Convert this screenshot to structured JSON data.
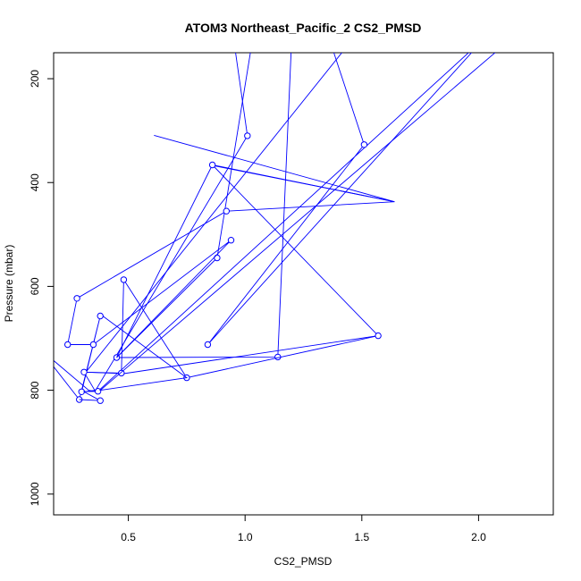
{
  "chart_data": {
    "type": "line",
    "title": "ATOM3 Northeast_Pacific_2 CS2_PMSD",
    "xlabel": "CS2_PMSD",
    "ylabel": "Pressure (mbar)",
    "xlim": [
      0.25,
      2.25
    ],
    "ylim": [
      1030,
      150
    ],
    "y_reversed": true,
    "x_ticks": [
      0.5,
      1.0,
      1.5,
      2.0
    ],
    "x_tick_labels": [
      "0.5",
      "1.0",
      "1.5",
      "2.0"
    ],
    "y_ticks": [
      200,
      400,
      600,
      800,
      1000
    ],
    "y_tick_labels": [
      "200",
      "400",
      "600",
      "800",
      "1000"
    ],
    "grid": false,
    "line_color": "#0000ff",
    "series": [
      {
        "x": [
          1.38,
          1.51,
          0.84,
          2.03,
          0.37,
          0.3,
          0.38,
          0.29,
          0.12,
          0.33,
          0.36,
          0.31,
          0.48,
          1.57,
          0.86,
          1.64,
          0.61
        ],
        "y": [
          150,
          327,
          712,
          120,
          802,
          803,
          657,
          818,
          720,
          800,
          803,
          765,
          768,
          695,
          366,
          437,
          309
        ],
        "markers": [
          false,
          true,
          true,
          false,
          true,
          true,
          true,
          true,
          false,
          false,
          false,
          false,
          false,
          false,
          false,
          false,
          false
        ]
      },
      {
        "x": [
          0.95,
          1.01,
          0.36,
          0.31,
          0.38,
          0.29
        ],
        "y": [
          120,
          310,
          800,
          803,
          820,
          818
        ],
        "markers": [
          false,
          true,
          false,
          false,
          true,
          false
        ]
      },
      {
        "x": [
          1.03,
          0.88,
          0.45,
          1.14,
          1.2
        ],
        "y": [
          130,
          545,
          737,
          736,
          120
        ],
        "markers": [
          false,
          true,
          true,
          true,
          false
        ]
      },
      {
        "x": [
          0.85,
          1.64,
          0.92,
          0.28,
          0.24,
          0.35,
          0.94,
          0.45,
          0.86
        ],
        "y": [
          366,
          437,
          455,
          623,
          712,
          712,
          511,
          737,
          366
        ],
        "markers": [
          false,
          false,
          true,
          true,
          true,
          true,
          true,
          false,
          true
        ]
      },
      {
        "x": [
          1.57,
          0.75,
          0.48,
          0.47,
          0.31,
          0.32,
          1.45
        ],
        "y": [
          695,
          776,
          587,
          767,
          765,
          764,
          130
        ],
        "markers": [
          true,
          true,
          true,
          true,
          true,
          false,
          false
        ]
      },
      {
        "x": [
          0.39,
          0.75,
          0.38,
          2.2
        ],
        "y": [
          657,
          776,
          800,
          100
        ],
        "markers": [
          false,
          false,
          false,
          false
        ]
      }
    ]
  }
}
